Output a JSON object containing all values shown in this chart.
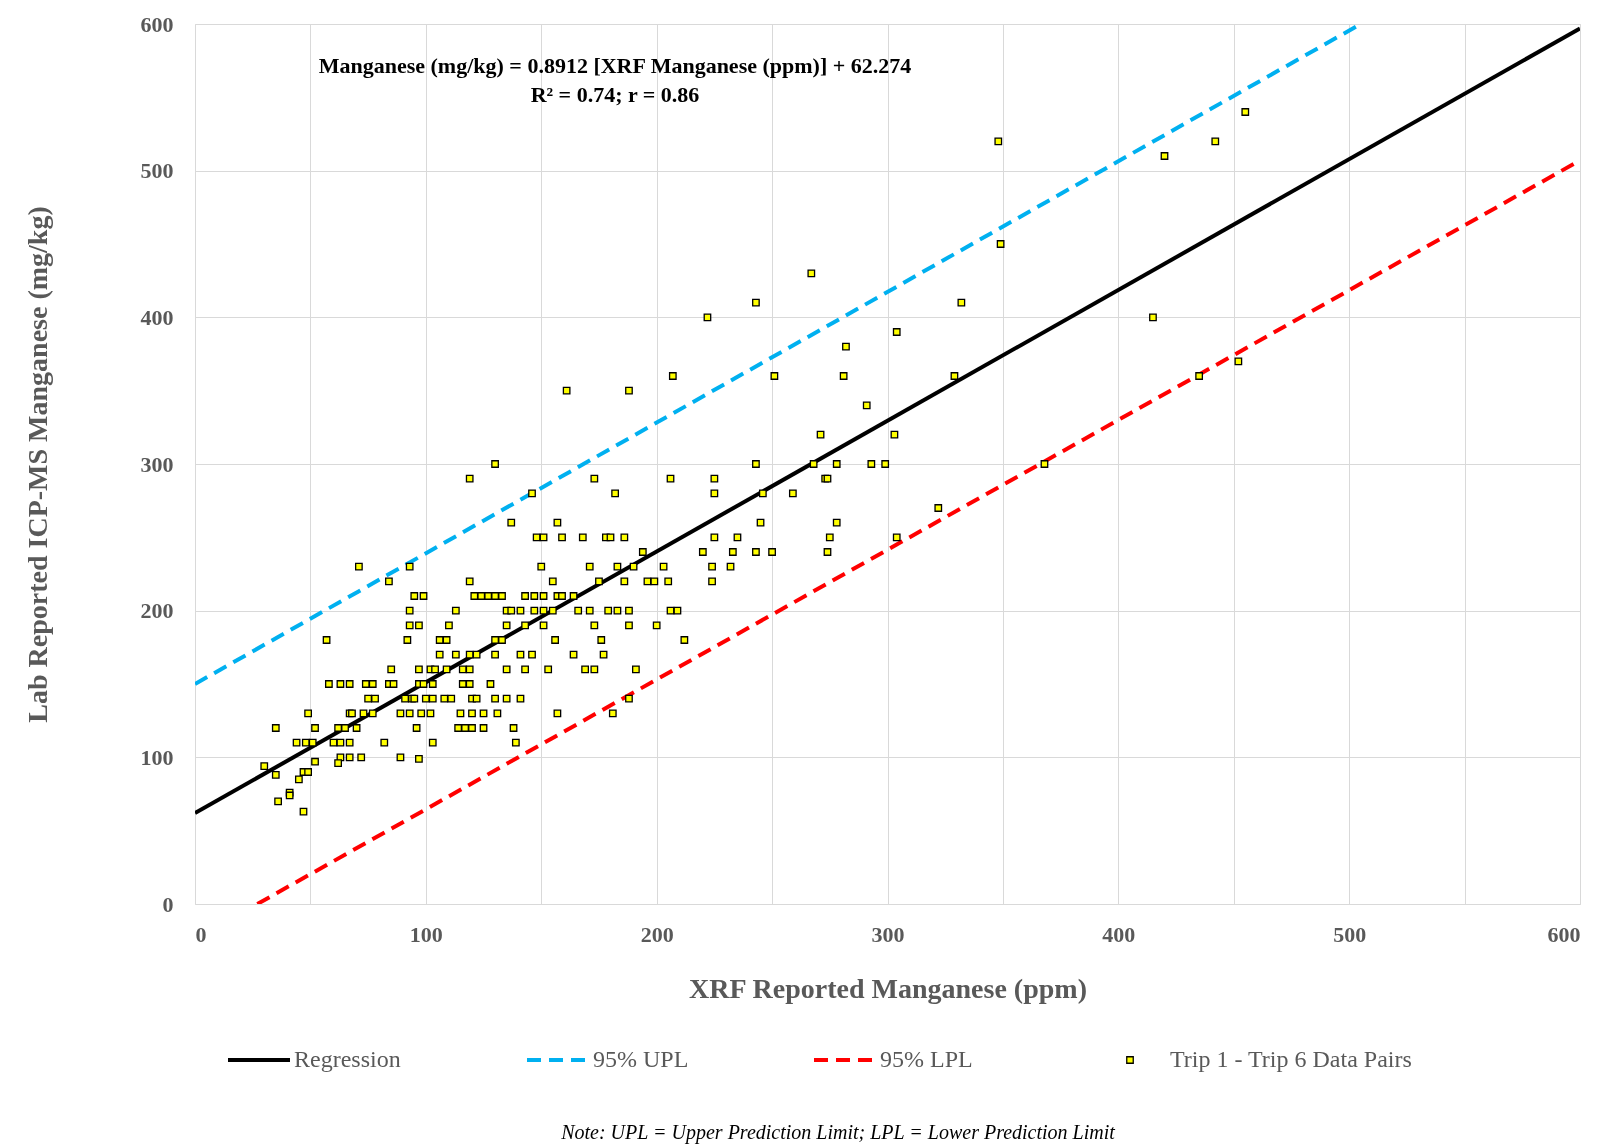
{
  "chart_data": {
    "type": "scatter",
    "xlabel": "XRF Reported Manganese (ppm)",
    "ylabel": "Lab  Reported ICP-MS Manganese (mg/kg)",
    "annotations": [
      "Manganese (mg/kg) = 0.8912 [XRF Manganese (ppm)] + 62.274",
      "R² = 0.74; r = 0.86",
      "Note: UPL = Upper Prediction Limit; LPL = Lower Prediction Limit"
    ],
    "xlim": [
      0,
      600
    ],
    "ylim": [
      0,
      600
    ],
    "xticks": [
      0,
      {
        "value": 50,
        "label": null
      },
      100,
      {
        "value": 150,
        "label": null
      },
      200,
      {
        "value": 250,
        "label": null
      },
      300,
      {
        "value": 350,
        "label": null
      },
      400,
      {
        "value": 450,
        "label": null
      },
      500,
      {
        "value": 550,
        "label": null
      },
      600
    ],
    "yticks": [
      0,
      100,
      200,
      300,
      400,
      500,
      600
    ],
    "grid": true,
    "legend": "bottom",
    "series": [
      {
        "name": "Regression",
        "type": "line",
        "color": "#000000",
        "line_style": "solid",
        "x": [
          0,
          600
        ],
        "values": [
          62,
          597
        ]
      },
      {
        "name": "95% UPL",
        "type": "line",
        "color": "#00b0f0",
        "line_style": "dashed",
        "x": [
          0,
          505
        ],
        "values": [
          150,
          600
        ]
      },
      {
        "name": "95% LPL",
        "type": "line",
        "color": "#ff0000",
        "line_style": "dashed",
        "x": [
          27,
          600
        ],
        "values": [
          0,
          507
        ]
      },
      {
        "name": "Trip 1 - Trip 6 Data Pairs",
        "color": "#ffff00",
        "marker": "square",
        "x": [
          455,
          348,
          442,
          420,
          349,
          267,
          243,
          332,
          222,
          415,
          304,
          282,
          452,
          207,
          251,
          281,
          329,
          435,
          161,
          188,
          291,
          271,
          303,
          130,
          243,
          268,
          278,
          293,
          299,
          368,
          119,
          173,
          206,
          225,
          273,
          274,
          146,
          182,
          225,
          246,
          259,
          322,
          137,
          157,
          245,
          278,
          148,
          151,
          159,
          168,
          178,
          180,
          186,
          225,
          235,
          275,
          304,
          194,
          220,
          233,
          243,
          250,
          274,
          71,
          93,
          150,
          171,
          183,
          190,
          203,
          224,
          232,
          84,
          119,
          155,
          175,
          186,
          196,
          199,
          205,
          224,
          95,
          99,
          121,
          124,
          127,
          130,
          133,
          143,
          147,
          151,
          157,
          159,
          164,
          93,
          113,
          135,
          137,
          141,
          147,
          151,
          155,
          166,
          171,
          179,
          183,
          188,
          206,
          209,
          93,
          97,
          110,
          135,
          143,
          151,
          173,
          188,
          200,
          57,
          92,
          106,
          109,
          130,
          133,
          156,
          176,
          212,
          106,
          113,
          119,
          122,
          130,
          141,
          146,
          164,
          177,
          85,
          97,
          102,
          104,
          109,
          116,
          119,
          135,
          143,
          153,
          169,
          173,
          191,
          58,
          63,
          67,
          74,
          77,
          84,
          86,
          97,
          99,
          103,
          116,
          119,
          128,
          75,
          78,
          91,
          94,
          95,
          100,
          103,
          108,
          111,
          120,
          122,
          130,
          135,
          141,
          188,
          49,
          67,
          68,
          73,
          77,
          89,
          93,
          98,
          102,
          115,
          120,
          125,
          131,
          157,
          181,
          35,
          52,
          62,
          65,
          70,
          96,
          114,
          117,
          120,
          125,
          138,
          44,
          48,
          51,
          60,
          63,
          67,
          82,
          103,
          139,
          63,
          67,
          72,
          89,
          97,
          52,
          62,
          30,
          47,
          49,
          35,
          45,
          41,
          41,
          36,
          47
        ],
        "values": [
          540,
          520,
          520,
          510,
          450,
          430,
          410,
          410,
          400,
          400,
          390,
          380,
          370,
          360,
          360,
          360,
          360,
          360,
          350,
          350,
          340,
          320,
          320,
          300,
          300,
          300,
          300,
          300,
          300,
          300,
          290,
          290,
          290,
          290,
          290,
          290,
          280,
          280,
          280,
          280,
          280,
          270,
          260,
          260,
          260,
          260,
          250,
          250,
          250,
          250,
          250,
          250,
          250,
          250,
          250,
          250,
          250,
          240,
          240,
          240,
          240,
          240,
          240,
          230,
          230,
          230,
          230,
          230,
          230,
          230,
          230,
          230,
          220,
          220,
          220,
          220,
          220,
          220,
          220,
          220,
          220,
          210,
          210,
          210,
          210,
          210,
          210,
          210,
          210,
          210,
          210,
          210,
          210,
          210,
          200,
          200,
          200,
          200,
          200,
          200,
          200,
          200,
          200,
          200,
          200,
          200,
          200,
          200,
          200,
          190,
          190,
          190,
          190,
          190,
          190,
          190,
          190,
          190,
          180,
          180,
          180,
          180,
          180,
          180,
          180,
          180,
          180,
          170,
          170,
          170,
          170,
          170,
          170,
          170,
          170,
          170,
          160,
          160,
          160,
          160,
          160,
          160,
          160,
          160,
          160,
          160,
          160,
          160,
          160,
          150,
          150,
          150,
          150,
          150,
          150,
          150,
          150,
          150,
          150,
          150,
          150,
          150,
          140,
          140,
          140,
          140,
          140,
          140,
          140,
          140,
          140,
          140,
          140,
          140,
          140,
          140,
          140,
          130,
          130,
          130,
          130,
          130,
          130,
          130,
          130,
          130,
          130,
          130,
          130,
          130,
          130,
          130,
          120,
          120,
          120,
          120,
          120,
          120,
          120,
          120,
          120,
          120,
          120,
          110,
          110,
          110,
          110,
          110,
          110,
          110,
          110,
          110,
          100,
          100,
          100,
          100,
          99,
          97,
          96,
          94,
          90,
          90,
          88,
          85,
          76,
          74,
          70,
          63
        ]
      }
    ]
  }
}
